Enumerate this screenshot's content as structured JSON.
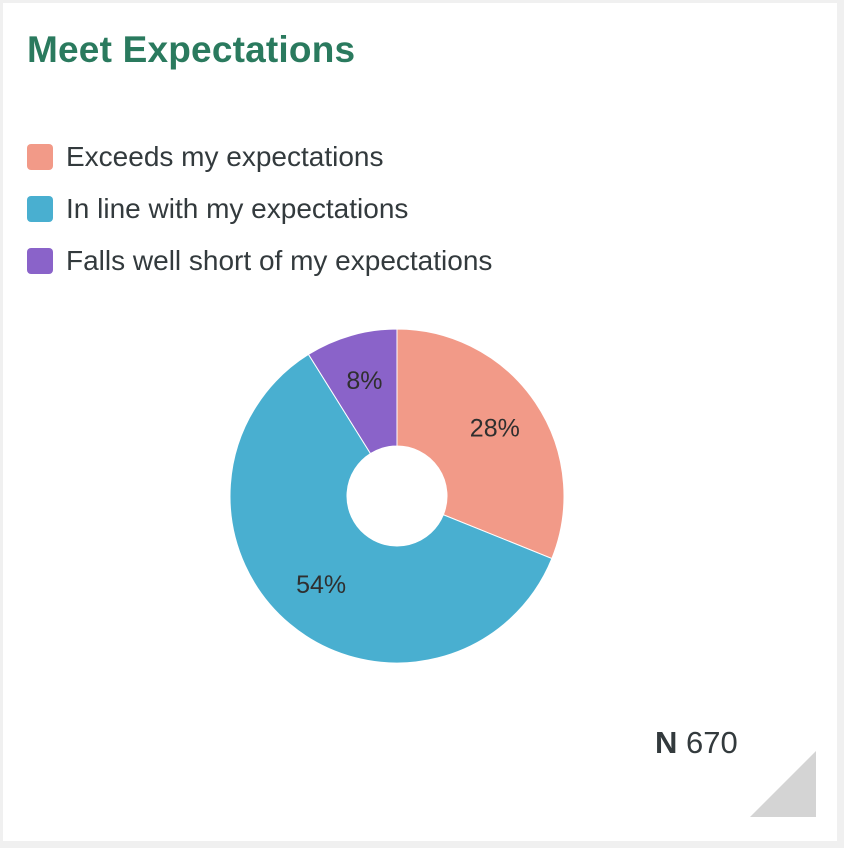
{
  "card": {
    "title": "Meet Expectations",
    "n_label": "N",
    "n_value": "670"
  },
  "colors": {
    "title": "#2a7a5e",
    "exceeds": "#f29a88",
    "in_line": "#49afd0",
    "falls_short": "#8a63c9"
  },
  "chart_data": {
    "type": "pie",
    "style": "donut",
    "title": "Meet Expectations",
    "legend_position": "top-left",
    "categories": [
      "Exceeds my expectations",
      "In line with my expectations",
      "Falls well short of my expectations"
    ],
    "values": [
      28,
      54,
      8
    ],
    "value_labels": [
      "28%",
      "54%",
      "8%"
    ],
    "colors": [
      "#f29a88",
      "#49afd0",
      "#8a63c9"
    ]
  }
}
